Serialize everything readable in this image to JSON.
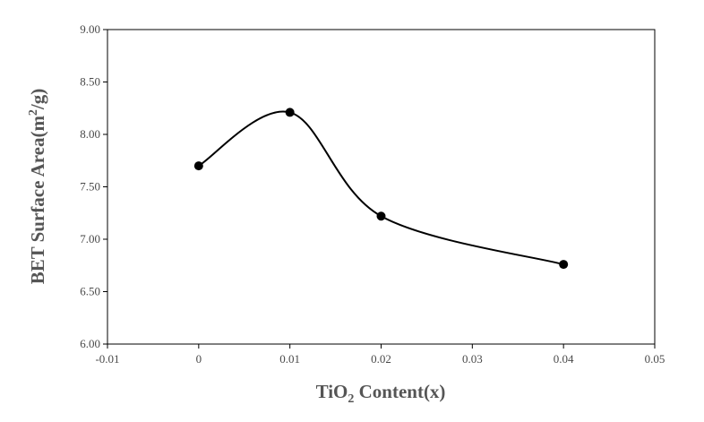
{
  "chart_data": {
    "type": "line",
    "title": "",
    "xlabel": {
      "prefix": "TiO",
      "subscript": "2",
      "suffix": " Content(x)"
    },
    "ylabel": {
      "prefix": "BET Surface Area(m",
      "superscript": "2",
      "suffix": "/g)"
    },
    "xlim": [
      -0.01,
      0.05
    ],
    "ylim": [
      6.0,
      9.0
    ],
    "x_ticks": [
      "-0.01",
      "0",
      "0.01",
      "0.02",
      "0.03",
      "0.04",
      "0.05"
    ],
    "y_ticks": [
      "6.00",
      "6.50",
      "7.00",
      "7.50",
      "8.00",
      "8.50",
      "9.00"
    ],
    "grid": false,
    "smoothed": true,
    "series": [
      {
        "x": [
          0,
          0.01,
          0.02,
          0.04
        ],
        "y": [
          7.7,
          8.21,
          7.22,
          6.76
        ]
      }
    ],
    "colors": {
      "line": "#000000",
      "marker": "#000000",
      "axis": "#000000",
      "tick_text": "#4a4a4a",
      "title_text": "#555555"
    }
  }
}
